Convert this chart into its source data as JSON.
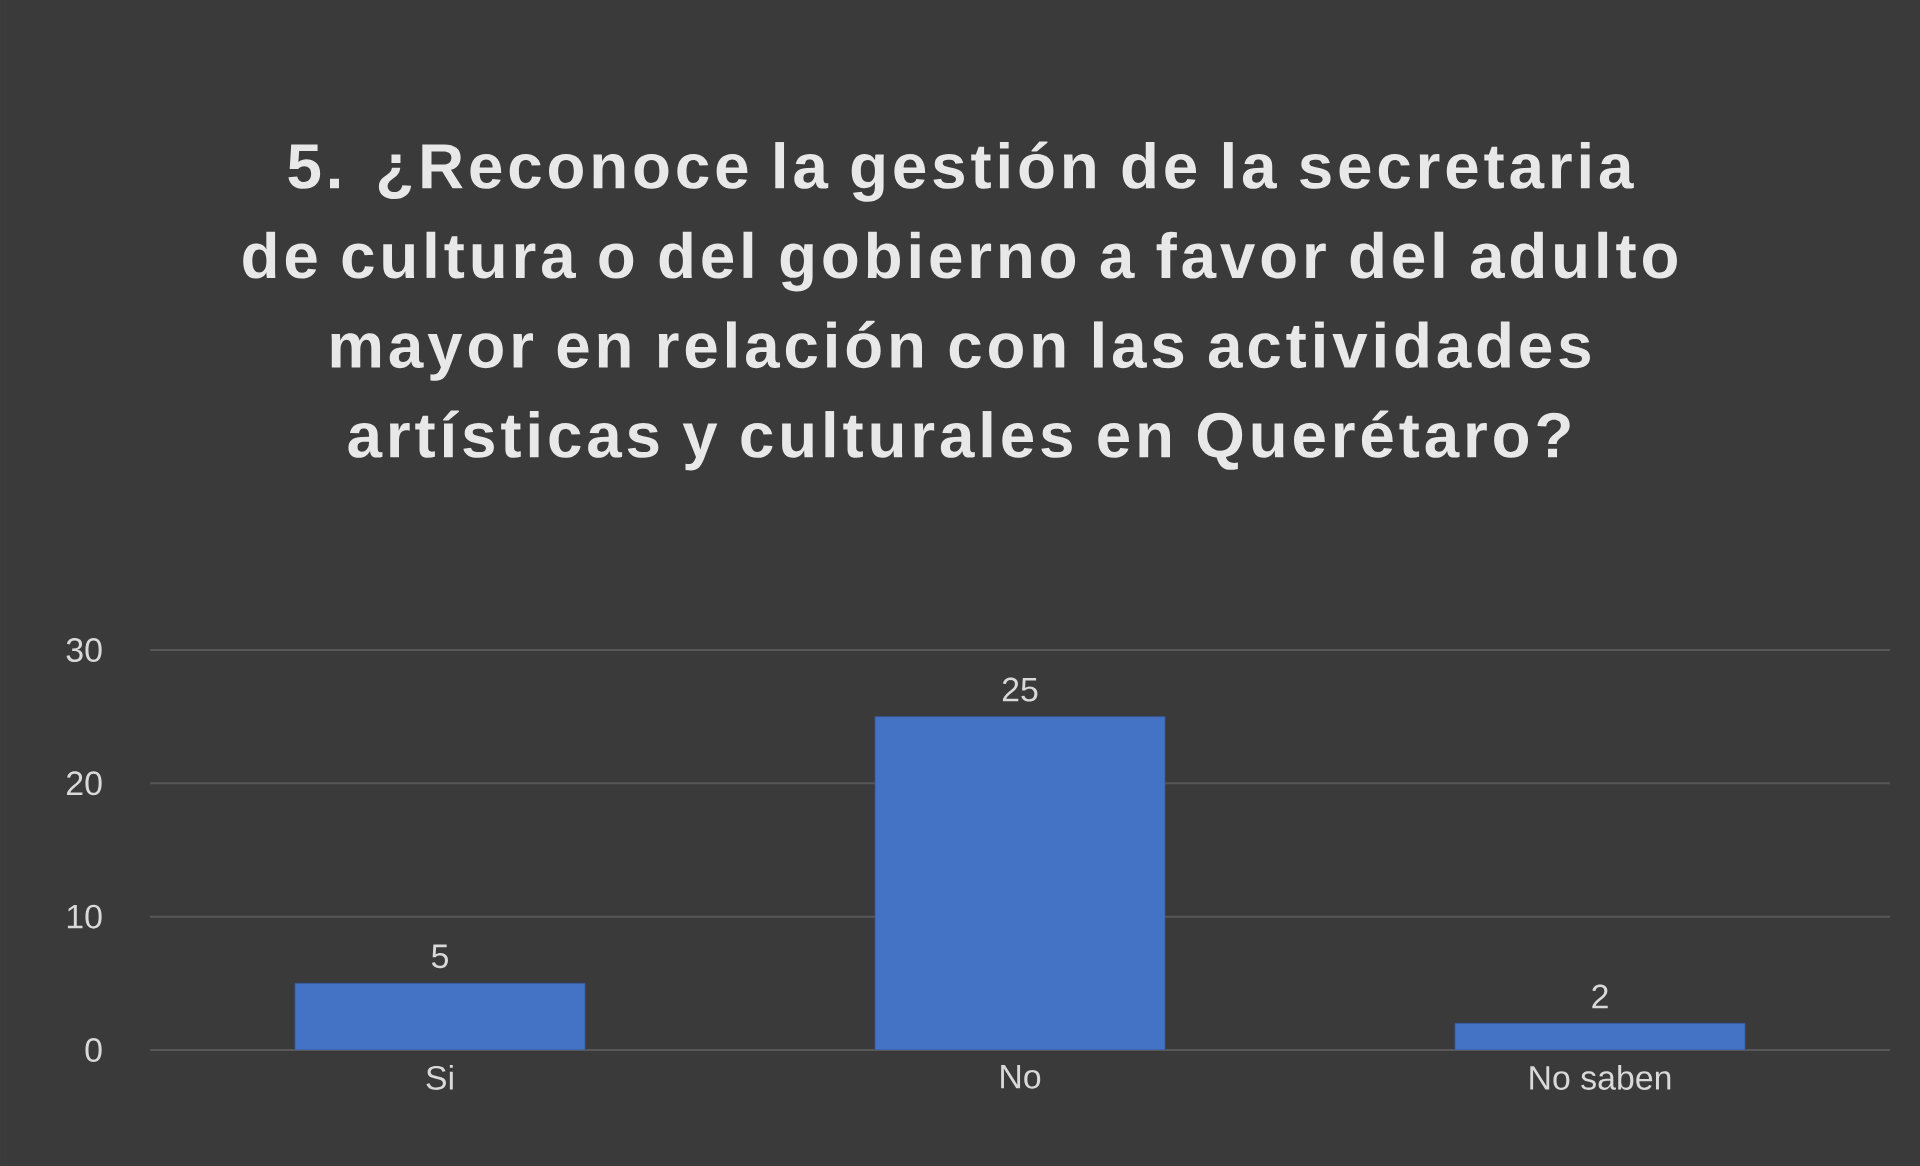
{
  "chart_data": {
    "type": "bar",
    "title": "5.    ¿Reconoce la gestión de la secretaria de cultura o del gobierno a favor del adulto mayor en relación con las actividades artísticas y culturales en Querétaro?",
    "categories": [
      "Si",
      "No",
      "No saben"
    ],
    "values": [
      5,
      25,
      2
    ],
    "color": "#4472c4",
    "ylim": [
      0,
      30
    ],
    "yticks": [
      0,
      10,
      20,
      30
    ],
    "grid": "y",
    "data_labels": true
  }
}
